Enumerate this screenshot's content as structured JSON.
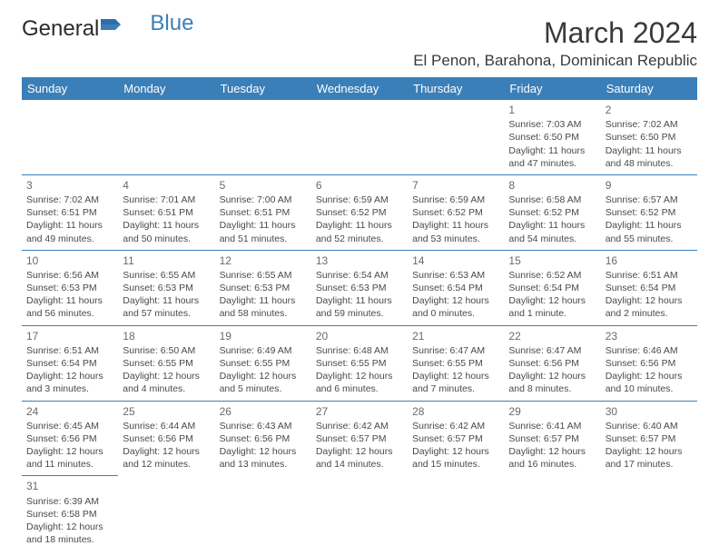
{
  "brand": {
    "part1": "General",
    "part2": "Blue"
  },
  "title": "March 2024",
  "location": "El Penon, Barahona, Dominican Republic",
  "headers": [
    "Sunday",
    "Monday",
    "Tuesday",
    "Wednesday",
    "Thursday",
    "Friday",
    "Saturday"
  ],
  "header_bg": "#3b7fb8",
  "header_fg": "#ffffff",
  "cell_border": "#3b7fb8",
  "text_color": "#4a4a4a",
  "font_body_pt": 8,
  "font_header_pt": 10,
  "font_title_pt": 24,
  "weeks": [
    [
      null,
      null,
      null,
      null,
      null,
      {
        "n": "1",
        "sr": "Sunrise: 7:03 AM",
        "ss": "Sunset: 6:50 PM",
        "dl1": "Daylight: 11 hours",
        "dl2": "and 47 minutes."
      },
      {
        "n": "2",
        "sr": "Sunrise: 7:02 AM",
        "ss": "Sunset: 6:50 PM",
        "dl1": "Daylight: 11 hours",
        "dl2": "and 48 minutes."
      }
    ],
    [
      {
        "n": "3",
        "sr": "Sunrise: 7:02 AM",
        "ss": "Sunset: 6:51 PM",
        "dl1": "Daylight: 11 hours",
        "dl2": "and 49 minutes."
      },
      {
        "n": "4",
        "sr": "Sunrise: 7:01 AM",
        "ss": "Sunset: 6:51 PM",
        "dl1": "Daylight: 11 hours",
        "dl2": "and 50 minutes."
      },
      {
        "n": "5",
        "sr": "Sunrise: 7:00 AM",
        "ss": "Sunset: 6:51 PM",
        "dl1": "Daylight: 11 hours",
        "dl2": "and 51 minutes."
      },
      {
        "n": "6",
        "sr": "Sunrise: 6:59 AM",
        "ss": "Sunset: 6:52 PM",
        "dl1": "Daylight: 11 hours",
        "dl2": "and 52 minutes."
      },
      {
        "n": "7",
        "sr": "Sunrise: 6:59 AM",
        "ss": "Sunset: 6:52 PM",
        "dl1": "Daylight: 11 hours",
        "dl2": "and 53 minutes."
      },
      {
        "n": "8",
        "sr": "Sunrise: 6:58 AM",
        "ss": "Sunset: 6:52 PM",
        "dl1": "Daylight: 11 hours",
        "dl2": "and 54 minutes."
      },
      {
        "n": "9",
        "sr": "Sunrise: 6:57 AM",
        "ss": "Sunset: 6:52 PM",
        "dl1": "Daylight: 11 hours",
        "dl2": "and 55 minutes."
      }
    ],
    [
      {
        "n": "10",
        "sr": "Sunrise: 6:56 AM",
        "ss": "Sunset: 6:53 PM",
        "dl1": "Daylight: 11 hours",
        "dl2": "and 56 minutes."
      },
      {
        "n": "11",
        "sr": "Sunrise: 6:55 AM",
        "ss": "Sunset: 6:53 PM",
        "dl1": "Daylight: 11 hours",
        "dl2": "and 57 minutes."
      },
      {
        "n": "12",
        "sr": "Sunrise: 6:55 AM",
        "ss": "Sunset: 6:53 PM",
        "dl1": "Daylight: 11 hours",
        "dl2": "and 58 minutes."
      },
      {
        "n": "13",
        "sr": "Sunrise: 6:54 AM",
        "ss": "Sunset: 6:53 PM",
        "dl1": "Daylight: 11 hours",
        "dl2": "and 59 minutes."
      },
      {
        "n": "14",
        "sr": "Sunrise: 6:53 AM",
        "ss": "Sunset: 6:54 PM",
        "dl1": "Daylight: 12 hours",
        "dl2": "and 0 minutes."
      },
      {
        "n": "15",
        "sr": "Sunrise: 6:52 AM",
        "ss": "Sunset: 6:54 PM",
        "dl1": "Daylight: 12 hours",
        "dl2": "and 1 minute."
      },
      {
        "n": "16",
        "sr": "Sunrise: 6:51 AM",
        "ss": "Sunset: 6:54 PM",
        "dl1": "Daylight: 12 hours",
        "dl2": "and 2 minutes."
      }
    ],
    [
      {
        "n": "17",
        "sr": "Sunrise: 6:51 AM",
        "ss": "Sunset: 6:54 PM",
        "dl1": "Daylight: 12 hours",
        "dl2": "and 3 minutes."
      },
      {
        "n": "18",
        "sr": "Sunrise: 6:50 AM",
        "ss": "Sunset: 6:55 PM",
        "dl1": "Daylight: 12 hours",
        "dl2": "and 4 minutes."
      },
      {
        "n": "19",
        "sr": "Sunrise: 6:49 AM",
        "ss": "Sunset: 6:55 PM",
        "dl1": "Daylight: 12 hours",
        "dl2": "and 5 minutes."
      },
      {
        "n": "20",
        "sr": "Sunrise: 6:48 AM",
        "ss": "Sunset: 6:55 PM",
        "dl1": "Daylight: 12 hours",
        "dl2": "and 6 minutes."
      },
      {
        "n": "21",
        "sr": "Sunrise: 6:47 AM",
        "ss": "Sunset: 6:55 PM",
        "dl1": "Daylight: 12 hours",
        "dl2": "and 7 minutes."
      },
      {
        "n": "22",
        "sr": "Sunrise: 6:47 AM",
        "ss": "Sunset: 6:56 PM",
        "dl1": "Daylight: 12 hours",
        "dl2": "and 8 minutes."
      },
      {
        "n": "23",
        "sr": "Sunrise: 6:46 AM",
        "ss": "Sunset: 6:56 PM",
        "dl1": "Daylight: 12 hours",
        "dl2": "and 10 minutes."
      }
    ],
    [
      {
        "n": "24",
        "sr": "Sunrise: 6:45 AM",
        "ss": "Sunset: 6:56 PM",
        "dl1": "Daylight: 12 hours",
        "dl2": "and 11 minutes."
      },
      {
        "n": "25",
        "sr": "Sunrise: 6:44 AM",
        "ss": "Sunset: 6:56 PM",
        "dl1": "Daylight: 12 hours",
        "dl2": "and 12 minutes."
      },
      {
        "n": "26",
        "sr": "Sunrise: 6:43 AM",
        "ss": "Sunset: 6:56 PM",
        "dl1": "Daylight: 12 hours",
        "dl2": "and 13 minutes."
      },
      {
        "n": "27",
        "sr": "Sunrise: 6:42 AM",
        "ss": "Sunset: 6:57 PM",
        "dl1": "Daylight: 12 hours",
        "dl2": "and 14 minutes."
      },
      {
        "n": "28",
        "sr": "Sunrise: 6:42 AM",
        "ss": "Sunset: 6:57 PM",
        "dl1": "Daylight: 12 hours",
        "dl2": "and 15 minutes."
      },
      {
        "n": "29",
        "sr": "Sunrise: 6:41 AM",
        "ss": "Sunset: 6:57 PM",
        "dl1": "Daylight: 12 hours",
        "dl2": "and 16 minutes."
      },
      {
        "n": "30",
        "sr": "Sunrise: 6:40 AM",
        "ss": "Sunset: 6:57 PM",
        "dl1": "Daylight: 12 hours",
        "dl2": "and 17 minutes."
      }
    ],
    [
      {
        "n": "31",
        "sr": "Sunrise: 6:39 AM",
        "ss": "Sunset: 6:58 PM",
        "dl1": "Daylight: 12 hours",
        "dl2": "and 18 minutes."
      },
      null,
      null,
      null,
      null,
      null,
      null
    ]
  ]
}
